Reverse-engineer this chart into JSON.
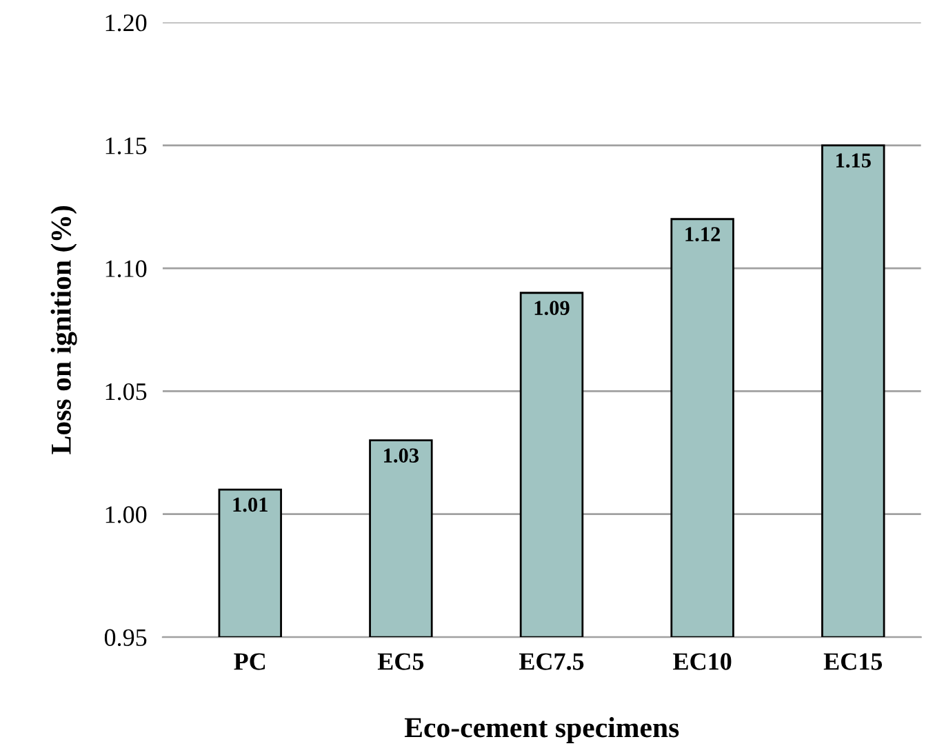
{
  "chart_data": {
    "type": "bar",
    "xlabel": "Eco-cement specimens",
    "ylabel": "Loss on ignition (%)",
    "categories": [
      "PC",
      "EC5",
      "EC7.5",
      "EC10",
      "EC15"
    ],
    "values": [
      1.01,
      1.03,
      1.09,
      1.12,
      1.15
    ],
    "color": "#a0c4c2",
    "ylim": [
      0.95,
      1.2
    ],
    "yticks": [
      {
        "value": 0.95,
        "label": "0.95"
      },
      {
        "value": 1.0,
        "label": "1.00"
      },
      {
        "value": 1.05,
        "label": "1.05"
      },
      {
        "value": 1.1,
        "label": "1.10"
      },
      {
        "value": 1.15,
        "label": "1.15"
      },
      {
        "value": 1.2,
        "label": "1.20"
      }
    ],
    "grid": "y",
    "data_labels": true,
    "legend": false
  }
}
